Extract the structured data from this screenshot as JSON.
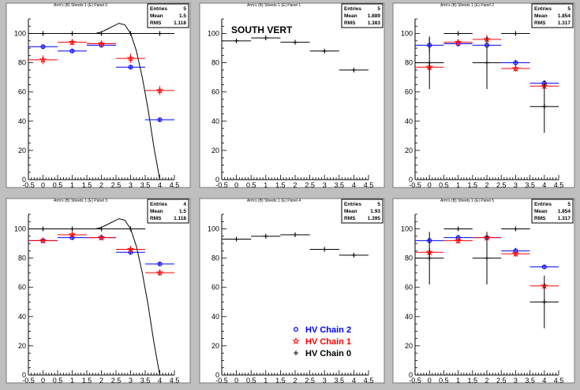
{
  "chart_data": [
    {
      "type": "scatter",
      "title": "Arm's (B) Sheets 1 (E) Panel 0",
      "stats": {
        "Entries": "5",
        "Mean": "1.5",
        "RMS": "1.118"
      },
      "xlim": [
        -0.5,
        4.5
      ],
      "ylim": [
        0,
        110
      ],
      "xticks": [
        "-0.5",
        "0",
        "0.5",
        "1",
        "1.5",
        "2",
        "2.5",
        "3",
        "3.5",
        "4",
        "4.5"
      ],
      "yticks": [
        "0",
        "20",
        "40",
        "60",
        "80",
        "100"
      ],
      "series": [
        {
          "name": "HV Chain 2",
          "color": "#0000ff",
          "marker": "circle",
          "x": [
            0,
            1,
            2,
            3,
            4
          ],
          "y": [
            91,
            88,
            92,
            77,
            41
          ],
          "xerr": [
            0.5,
            0.5,
            0.5,
            0.5,
            0.5
          ],
          "yerr": [
            1.5,
            1,
            1,
            1.5,
            1
          ]
        },
        {
          "name": "HV Chain 1",
          "color": "#ff0000",
          "marker": "star",
          "x": [
            0,
            1,
            2,
            3,
            4
          ],
          "y": [
            82,
            94,
            93,
            83,
            61
          ],
          "xerr": [
            0.5,
            0.5,
            0.5,
            0.5,
            0.5
          ],
          "yerr": [
            3,
            2,
            2,
            3,
            3
          ]
        },
        {
          "name": "HV Chain 0",
          "color": "#000000",
          "marker": "plus",
          "x": [
            0,
            1,
            2,
            3,
            4
          ],
          "y": [
            100,
            100,
            100,
            100,
            100
          ],
          "xerr": [
            0.5,
            0.5,
            0.5,
            0.5,
            0.5
          ],
          "yerr": [
            0,
            0,
            0,
            0,
            0
          ]
        }
      ],
      "fit_curve": {
        "x": [
          1.8,
          2.0,
          2.2,
          2.4,
          2.6,
          2.8,
          3.0,
          3.2,
          3.4,
          3.6,
          3.8,
          4.0
        ],
        "y": [
          100,
          101,
          103,
          105,
          107,
          106,
          100,
          88,
          70,
          48,
          22,
          0
        ]
      }
    },
    {
      "type": "scatter",
      "title": "Arm's (B) Sheets 1 (E) Panel 1",
      "annotation": "SOUTH VERT",
      "stats": {
        "Entries": "5",
        "Mean": "1.889",
        "RMS": "1.383"
      },
      "xlim": [
        -0.5,
        4.5
      ],
      "ylim": [
        0,
        110
      ],
      "xticks": [
        "-0.5",
        "0",
        "0.5",
        "1",
        "1.5",
        "2",
        "2.5",
        "3",
        "3.5",
        "4",
        "4.5"
      ],
      "yticks": [
        "0",
        "20",
        "40",
        "60",
        "80",
        "100"
      ],
      "series": [
        {
          "name": "",
          "color": "#000000",
          "marker": "plus",
          "x": [
            0,
            1,
            2,
            3,
            4
          ],
          "y": [
            95,
            97,
            94,
            88,
            75
          ],
          "xerr": [
            0.5,
            0.5,
            0.5,
            0.5,
            0.5
          ],
          "yerr": [
            0,
            0,
            0,
            0,
            0
          ]
        }
      ]
    },
    {
      "type": "scatter",
      "title": "Arm's (B) Sheets 1 (E) Panel 2",
      "stats": {
        "Entries": "5",
        "Mean": "1.854",
        "RMS": "1.317"
      },
      "xlim": [
        -0.5,
        4.5
      ],
      "ylim": [
        0,
        110
      ],
      "xticks": [
        "-0.5",
        "0",
        "0.5",
        "1",
        "1.5",
        "2",
        "2.5",
        "3",
        "3.5",
        "4",
        "4.5"
      ],
      "yticks": [
        "0",
        "20",
        "40",
        "60",
        "80",
        "100"
      ],
      "series": [
        {
          "name": "HV Chain 2",
          "color": "#0000ff",
          "marker": "circle",
          "x": [
            0,
            1,
            2,
            3,
            4
          ],
          "y": [
            92,
            93,
            92,
            80,
            66
          ],
          "xerr": [
            0.5,
            0.5,
            0.5,
            0.5,
            0.5
          ],
          "yerr": [
            5,
            2,
            5,
            2,
            2
          ]
        },
        {
          "name": "HV Chain 1",
          "color": "#ff0000",
          "marker": "star",
          "x": [
            0,
            1,
            2,
            3,
            4
          ],
          "y": [
            77,
            94,
            96,
            76,
            64
          ],
          "xerr": [
            0.5,
            0.5,
            0.5,
            0.5,
            0.5
          ],
          "yerr": [
            3,
            2,
            3,
            2,
            2
          ]
        },
        {
          "name": "HV Chain 0",
          "color": "#000000",
          "marker": "plus",
          "x": [
            0,
            1,
            2,
            3,
            4
          ],
          "y": [
            80,
            100,
            80,
            100,
            50
          ],
          "xerr": [
            0.5,
            0.5,
            0.5,
            0.5,
            0.5
          ],
          "yerr": [
            18,
            0,
            18,
            0,
            18
          ]
        }
      ]
    },
    {
      "type": "scatter",
      "title": "Arm's (B) Sheets 1 (E) Panel 3",
      "stats": {
        "Entries": "4",
        "Mean": "1.5",
        "RMS": "1.118"
      },
      "xlim": [
        -0.5,
        4.5
      ],
      "ylim": [
        0,
        110
      ],
      "xticks": [
        "-0.5",
        "0",
        "0.5",
        "1",
        "1.5",
        "2",
        "2.5",
        "3",
        "3.5",
        "4",
        "4.5"
      ],
      "yticks": [
        "0",
        "20",
        "40",
        "60",
        "80",
        "100"
      ],
      "series": [
        {
          "name": "HV Chain 2",
          "color": "#0000ff",
          "marker": "circle",
          "x": [
            0,
            1,
            2,
            3,
            4
          ],
          "y": [
            92,
            94,
            94,
            84,
            76
          ],
          "xerr": [
            0.5,
            0.5,
            0.5,
            0.5,
            0.5
          ],
          "yerr": [
            1,
            1,
            1,
            1.5,
            1
          ]
        },
        {
          "name": "HV Chain 1",
          "color": "#ff0000",
          "marker": "star",
          "x": [
            0,
            1,
            2,
            3,
            4
          ],
          "y": [
            92,
            96,
            94,
            86,
            70
          ],
          "xerr": [
            0.5,
            0.5,
            0.5,
            0.5,
            0.5
          ],
          "yerr": [
            1.5,
            1.5,
            1.5,
            1.5,
            2
          ]
        },
        {
          "name": "HV Chain 0",
          "color": "#000000",
          "marker": "plus",
          "x": [
            0,
            1,
            2,
            3
          ],
          "y": [
            100,
            100,
            100,
            100
          ],
          "xerr": [
            0.5,
            0.5,
            0.5,
            0.5
          ],
          "yerr": [
            0,
            0,
            0,
            0
          ]
        }
      ],
      "fit_curve": {
        "x": [
          1.8,
          2.0,
          2.2,
          2.4,
          2.6,
          2.8,
          3.0,
          3.2,
          3.4,
          3.6,
          3.8,
          4.0
        ],
        "y": [
          100,
          101,
          103,
          105,
          107,
          106,
          100,
          88,
          70,
          48,
          22,
          0
        ]
      }
    },
    {
      "type": "scatter",
      "title": "Arm's (B) Sheets 1 (E) Panel 4",
      "stats": {
        "Entries": "5",
        "Mean": "1.93",
        "RMS": "1.395"
      },
      "xlim": [
        -0.5,
        4.5
      ],
      "ylim": [
        0,
        110
      ],
      "xticks": [
        "-0.5",
        "0",
        "0.5",
        "1",
        "1.5",
        "2",
        "2.5",
        "3",
        "3.5",
        "4",
        "4.5"
      ],
      "yticks": [
        "0",
        "20",
        "40",
        "60",
        "80",
        "100"
      ],
      "series": [
        {
          "name": "",
          "color": "#000000",
          "marker": "plus",
          "x": [
            0,
            1,
            2,
            3,
            4
          ],
          "y": [
            93,
            95,
            96,
            86,
            82
          ],
          "xerr": [
            0.5,
            0.5,
            0.5,
            0.5,
            0.5
          ],
          "yerr": [
            0,
            0,
            0,
            0,
            0
          ]
        }
      ],
      "legend": [
        {
          "label": "HV Chain 2",
          "color": "#0000ff",
          "marker": "circle"
        },
        {
          "label": "HV Chain 1",
          "color": "#ff0000",
          "marker": "star"
        },
        {
          "label": "HV Chain 0",
          "color": "#000000",
          "marker": "plus"
        }
      ]
    },
    {
      "type": "scatter",
      "title": "Arm's (B) Sheets 1 (E) Panel 5",
      "stats": {
        "Entries": "5",
        "Mean": "1.854",
        "RMS": "1.317"
      },
      "xlim": [
        -0.5,
        4.5
      ],
      "ylim": [
        0,
        110
      ],
      "xticks": [
        "-0.5",
        "0",
        "0.5",
        "1",
        "1.5",
        "2",
        "2.5",
        "3",
        "3.5",
        "4",
        "4.5"
      ],
      "yticks": [
        "0",
        "20",
        "40",
        "60",
        "80",
        "100"
      ],
      "series": [
        {
          "name": "HV Chain 2",
          "color": "#0000ff",
          "marker": "circle",
          "x": [
            0,
            1,
            2,
            3,
            4
          ],
          "y": [
            92,
            94,
            94,
            85,
            74
          ],
          "xerr": [
            0.5,
            0.5,
            0.5,
            0.5,
            0.5
          ],
          "yerr": [
            2,
            2,
            2,
            2,
            1
          ]
        },
        {
          "name": "HV Chain 1",
          "color": "#ff0000",
          "marker": "star",
          "x": [
            0,
            1,
            2,
            3,
            4
          ],
          "y": [
            84,
            92,
            94,
            83,
            61
          ],
          "xerr": [
            0.5,
            0.5,
            0.5,
            0.5,
            0.5
          ],
          "yerr": [
            3,
            2,
            3,
            2,
            2
          ]
        },
        {
          "name": "HV Chain 0",
          "color": "#000000",
          "marker": "plus",
          "x": [
            0,
            1,
            2,
            3,
            4
          ],
          "y": [
            80,
            100,
            80,
            100,
            50
          ],
          "xerr": [
            0.5,
            0.5,
            0.5,
            0.5,
            0.5
          ],
          "yerr": [
            18,
            0,
            18,
            0,
            18
          ]
        }
      ]
    }
  ]
}
